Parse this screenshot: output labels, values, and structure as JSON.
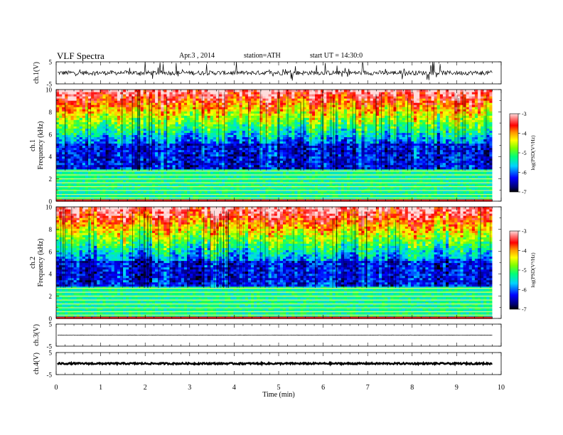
{
  "header": {
    "title": "VLF  Spectra",
    "date": "Apr.3  , 2014",
    "station": "station=ATH",
    "start": "start  UT =   14:30:0"
  },
  "chart_data": [
    {
      "type": "line",
      "panel": "ch.1 waveform",
      "ylabel": "ch.1(V)",
      "ylim": [
        -5,
        5
      ],
      "yticks": [
        "5",
        "-5"
      ],
      "xlim": [
        0,
        10
      ],
      "trace": {
        "center": 0,
        "amplitude": 1,
        "spikes": true
      }
    },
    {
      "type": "heatmap",
      "panel": "ch.1 spectrogram",
      "ylabel": "ch.1  Frequency  (kHz)",
      "ylim": [
        0,
        10
      ],
      "yticks": [
        "0",
        "2",
        "4",
        "6",
        "8",
        "10"
      ],
      "xlim": [
        0,
        9.8
      ],
      "colorbar": {
        "label": "log(PSD(V²/Hz)",
        "ticks": [
          "-3",
          "-4",
          "-5",
          "-6",
          "-7"
        ],
        "range": [
          -7,
          -3
        ]
      },
      "bands_khz": [
        0.3,
        0.6,
        0.95,
        1.3,
        1.65,
        2.0,
        2.35,
        2.7
      ]
    },
    {
      "type": "heatmap",
      "panel": "ch.2 spectrogram",
      "ylabel": "ch.2  Frequency  (kHz)",
      "ylim": [
        0,
        10
      ],
      "yticks": [
        "0",
        "2",
        "4",
        "6",
        "8",
        "10"
      ],
      "xlim": [
        0,
        9.8
      ],
      "colorbar": {
        "label": "log(PSD(V²/Hz)",
        "ticks": [
          "-3",
          "-4",
          "-5",
          "-6",
          "-7"
        ],
        "range": [
          -7,
          -3
        ]
      },
      "bands_khz": [
        0.3,
        0.6,
        0.95,
        1.3,
        1.65,
        2.0,
        2.35,
        2.7
      ]
    },
    {
      "type": "line",
      "panel": "ch.3 waveform",
      "ylabel": "ch.3(V)",
      "ylim": [
        -5,
        5
      ],
      "yticks": [
        "5",
        "-5"
      ],
      "xlim": [
        0,
        10
      ],
      "trace": {
        "center": 0,
        "amplitude": 0.1,
        "spikes": false
      }
    },
    {
      "type": "line",
      "panel": "ch.4 waveform",
      "ylabel": "ch.4(V)",
      "ylim": [
        -5,
        5
      ],
      "yticks": [
        "5",
        "-5"
      ],
      "xlim": [
        0,
        10
      ],
      "trace": {
        "center": 0,
        "amplitude": 0.35,
        "spikes": false
      }
    }
  ],
  "xaxis": {
    "label": "Time  (min)",
    "range": [
      0,
      10
    ],
    "ticks": [
      "0",
      "1",
      "2",
      "3",
      "4",
      "5",
      "6",
      "7",
      "8",
      "9",
      "10"
    ]
  }
}
